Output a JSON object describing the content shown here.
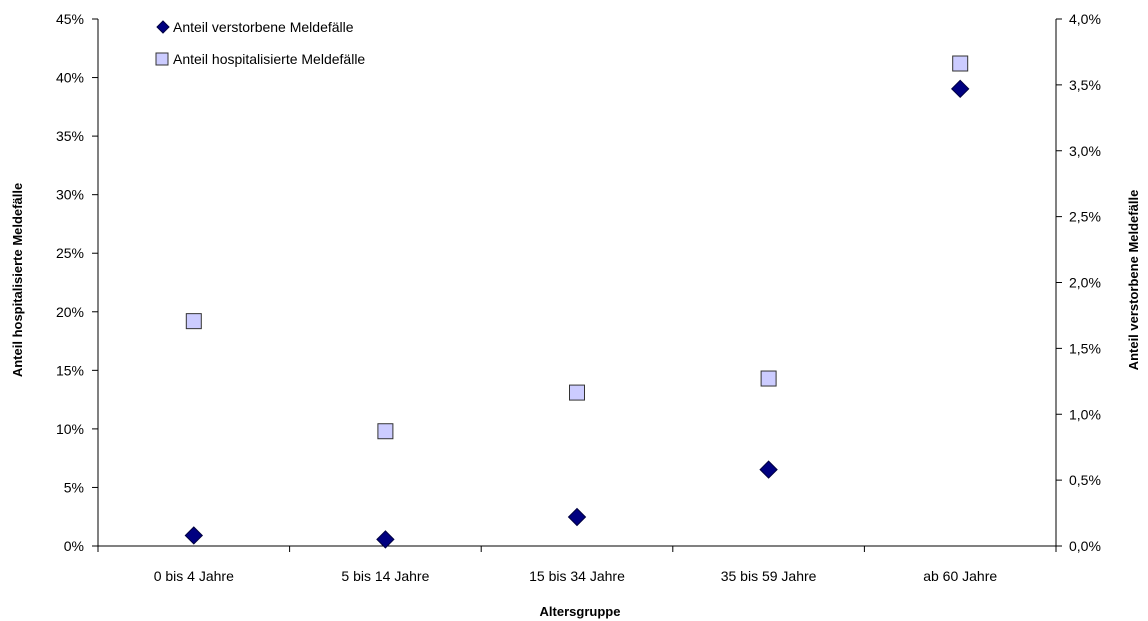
{
  "chart_data": {
    "type": "scatter",
    "categories": [
      "0 bis 4 Jahre",
      "5 bis 14 Jahre",
      "15 bis 34 Jahre",
      "35 bis 59 Jahre",
      "ab 60 Jahre"
    ],
    "xlabel": "Altersgruppe",
    "ylabel_left": "Anteil hospitalisierte Meldefälle",
    "ylabel_right": "Anteil verstorbene Meldefälle",
    "ylim_left": [
      0,
      45
    ],
    "ylim_right": [
      0,
      4.0
    ],
    "yticks_left": [
      "0%",
      "5%",
      "10%",
      "15%",
      "20%",
      "25%",
      "30%",
      "35%",
      "40%",
      "45%"
    ],
    "yticks_right": [
      "0,0%",
      "0,5%",
      "1,0%",
      "1,5%",
      "2,0%",
      "2,5%",
      "3,0%",
      "3,5%",
      "4,0%"
    ],
    "grid": false,
    "legend_position": "top-left",
    "series": [
      {
        "name": "Anteil verstorbene Meldefälle",
        "axis": "right",
        "marker": "diamond",
        "color": "#000080",
        "values": [
          0.08,
          0.05,
          0.22,
          0.58,
          3.47
        ]
      },
      {
        "name": "Anteil hospitalisierte Meldefälle",
        "axis": "left",
        "marker": "square",
        "color": "#ccccff",
        "values": [
          19.2,
          9.8,
          13.1,
          14.3,
          41.2
        ]
      }
    ]
  }
}
